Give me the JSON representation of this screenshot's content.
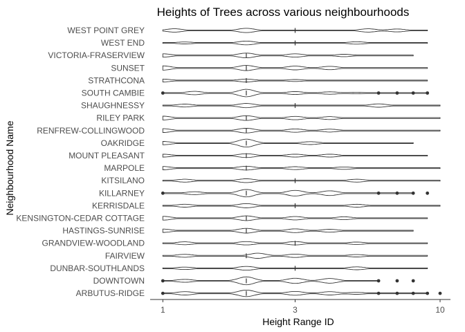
{
  "chart_data": {
    "type": "violin",
    "title": "Heights of Trees across various neighbourhoods",
    "xlabel": "Height Range ID",
    "ylabel": "Neighbourhood Name",
    "x_scale": "log10",
    "xlim": [
      0.9,
      10.9
    ],
    "x_ticks": [
      1,
      3,
      10
    ],
    "x_tick_labels": [
      "1",
      "3",
      "10"
    ],
    "grid": false,
    "legend": "none",
    "colors": {
      "stroke": "#333333",
      "fill": "#ffffff",
      "outlier": "#333333"
    },
    "categories": [
      "WEST POINT GREY",
      "WEST END",
      "VICTORIA-FRASERVIEW",
      "SUNSET",
      "STRATHCONA",
      "SOUTH CAMBIE",
      "SHAUGHNESSY",
      "RILEY PARK",
      "RENFREW-COLLINGWOOD",
      "OAKRIDGE",
      "MOUNT PLEASANT",
      "MARPOLE",
      "KITSILANO",
      "KILLARNEY",
      "KERRISDALE",
      "KENSINGTON-CEDAR COTTAGE",
      "HASTINGS-SUNRISE",
      "GRANDVIEW-WOODLAND",
      "FAIRVIEW",
      "DUNBAR-SOUTHLANDS",
      "DOWNTOWN",
      "ARBUTUS-RIDGE"
    ],
    "series": [
      {
        "category": "WEST POINT GREY",
        "range": [
          1,
          9
        ],
        "median": 3,
        "modes": [
          [
            1.1,
            0.35
          ],
          [
            2,
            0.45
          ],
          [
            5.5,
            0.35
          ],
          [
            7,
            0.3
          ]
        ],
        "outliers": []
      },
      {
        "category": "WEST END",
        "range": [
          1,
          9
        ],
        "median": 3,
        "modes": [
          [
            1.2,
            0.2
          ],
          [
            2,
            0.4
          ],
          [
            5,
            0.25
          ]
        ],
        "outliers": []
      },
      {
        "category": "VICTORIA-FRASERVIEW",
        "range": [
          1,
          8
        ],
        "median": 2,
        "modes": [
          [
            1,
            0.35
          ],
          [
            2,
            0.5
          ],
          [
            3,
            0.35
          ],
          [
            4.5,
            0.25
          ]
        ],
        "outliers": []
      },
      {
        "category": "SUNSET",
        "range": [
          1,
          9
        ],
        "median": 2,
        "modes": [
          [
            1,
            0.45
          ],
          [
            2,
            0.55
          ],
          [
            3,
            0.4
          ],
          [
            4,
            0.35
          ]
        ],
        "outliers": []
      },
      {
        "category": "STRATHCONA",
        "range": [
          1,
          9
        ],
        "median": 2,
        "modes": [
          [
            1,
            0.3
          ],
          [
            2,
            0.3
          ],
          [
            3,
            0.2
          ]
        ],
        "outliers": []
      },
      {
        "category": "SOUTH CAMBIE",
        "range": [
          1,
          9
        ],
        "median": 2,
        "modes": [
          [
            1.3,
            0.35
          ],
          [
            2,
            0.8
          ],
          [
            3,
            0.3
          ],
          [
            4,
            0.25
          ],
          [
            5,
            0.15
          ]
        ],
        "outliers": [
          1,
          6,
          7,
          8,
          9
        ]
      },
      {
        "category": "SHAUGHNESSY",
        "range": [
          1,
          10
        ],
        "median": 3,
        "modes": [
          [
            1.2,
            0.3
          ],
          [
            2,
            0.45
          ],
          [
            6,
            0.35
          ]
        ],
        "outliers": []
      },
      {
        "category": "RILEY PARK",
        "range": [
          1,
          10
        ],
        "median": 2,
        "modes": [
          [
            1,
            0.4
          ],
          [
            2,
            0.5
          ],
          [
            3,
            0.35
          ],
          [
            4,
            0.3
          ]
        ],
        "outliers": []
      },
      {
        "category": "RENFREW-COLLINGWOOD",
        "range": [
          1,
          10
        ],
        "median": 2,
        "modes": [
          [
            1,
            0.4
          ],
          [
            2,
            0.5
          ],
          [
            3,
            0.35
          ],
          [
            4,
            0.3
          ]
        ],
        "outliers": []
      },
      {
        "category": "OAKRIDGE",
        "range": [
          1,
          8
        ],
        "median": 2,
        "modes": [
          [
            1,
            0.35
          ],
          [
            2,
            0.85
          ],
          [
            3.4,
            0.3
          ]
        ],
        "outliers": []
      },
      {
        "category": "MOUNT PLEASANT",
        "range": [
          1,
          9
        ],
        "median": 2,
        "modes": [
          [
            1,
            0.3
          ],
          [
            2,
            0.4
          ],
          [
            3,
            0.3
          ],
          [
            4,
            0.3
          ]
        ],
        "outliers": []
      },
      {
        "category": "MARPOLE",
        "range": [
          1,
          10
        ],
        "median": 2,
        "modes": [
          [
            1,
            0.35
          ],
          [
            2,
            0.4
          ],
          [
            3,
            0.3
          ],
          [
            4.5,
            0.25
          ]
        ],
        "outliers": []
      },
      {
        "category": "KITSILANO",
        "range": [
          1,
          10
        ],
        "median": 3,
        "modes": [
          [
            1.2,
            0.3
          ],
          [
            2,
            0.4
          ],
          [
            5,
            0.3
          ]
        ],
        "outliers": []
      },
      {
        "category": "KILLARNEY",
        "range": [
          1,
          8
        ],
        "median": 2,
        "modes": [
          [
            1.3,
            0.3
          ],
          [
            2,
            0.8
          ],
          [
            3,
            0.6
          ],
          [
            4,
            0.5
          ]
        ],
        "outliers": [
          1,
          6,
          7,
          8,
          9
        ]
      },
      {
        "category": "KERRISDALE",
        "range": [
          1,
          10
        ],
        "median": 3,
        "modes": [
          [
            1.2,
            0.3
          ],
          [
            2,
            0.45
          ],
          [
            5,
            0.3
          ]
        ],
        "outliers": []
      },
      {
        "category": "KENSINGTON-CEDAR COTTAGE",
        "range": [
          1,
          9
        ],
        "median": 2,
        "modes": [
          [
            1,
            0.4
          ],
          [
            2,
            0.5
          ],
          [
            3,
            0.35
          ],
          [
            4.5,
            0.3
          ]
        ],
        "outliers": []
      },
      {
        "category": "HASTINGS-SUNRISE",
        "range": [
          1,
          8
        ],
        "median": 2,
        "modes": [
          [
            1,
            0.35
          ],
          [
            2,
            0.5
          ],
          [
            3,
            0.4
          ],
          [
            4,
            0.3
          ]
        ],
        "outliers": []
      },
      {
        "category": "GRANDVIEW-WOODLAND",
        "range": [
          1,
          9
        ],
        "median": 3,
        "modes": [
          [
            1.2,
            0.3
          ],
          [
            2,
            0.35
          ],
          [
            3,
            0.35
          ],
          [
            5,
            0.25
          ]
        ],
        "outliers": []
      },
      {
        "category": "FAIRVIEW",
        "range": [
          1,
          9
        ],
        "median": 2,
        "modes": [
          [
            1.2,
            0.3
          ],
          [
            2.2,
            0.55
          ],
          [
            3,
            0.35
          ],
          [
            5,
            0.25
          ]
        ],
        "outliers": []
      },
      {
        "category": "DUNBAR-SOUTHLANDS",
        "range": [
          1,
          9
        ],
        "median": 3,
        "modes": [
          [
            1.2,
            0.25
          ],
          [
            2,
            0.4
          ],
          [
            5,
            0.3
          ]
        ],
        "outliers": []
      },
      {
        "category": "DOWNTOWN",
        "range": [
          1,
          6
        ],
        "median": 2,
        "modes": [
          [
            1.2,
            0.3
          ],
          [
            2,
            0.85
          ],
          [
            3,
            0.55
          ],
          [
            4,
            0.5
          ]
        ],
        "outliers": [
          1,
          6,
          7,
          8
        ]
      },
      {
        "category": "ARBUTUS-RIDGE",
        "range": [
          1,
          9
        ],
        "median": 2,
        "modes": [
          [
            1.2,
            0.35
          ],
          [
            2,
            0.7
          ],
          [
            3,
            0.4
          ],
          [
            4,
            0.35
          ],
          [
            5,
            0.2
          ]
        ],
        "outliers": [
          1,
          6,
          7,
          8,
          9,
          10
        ]
      }
    ]
  }
}
